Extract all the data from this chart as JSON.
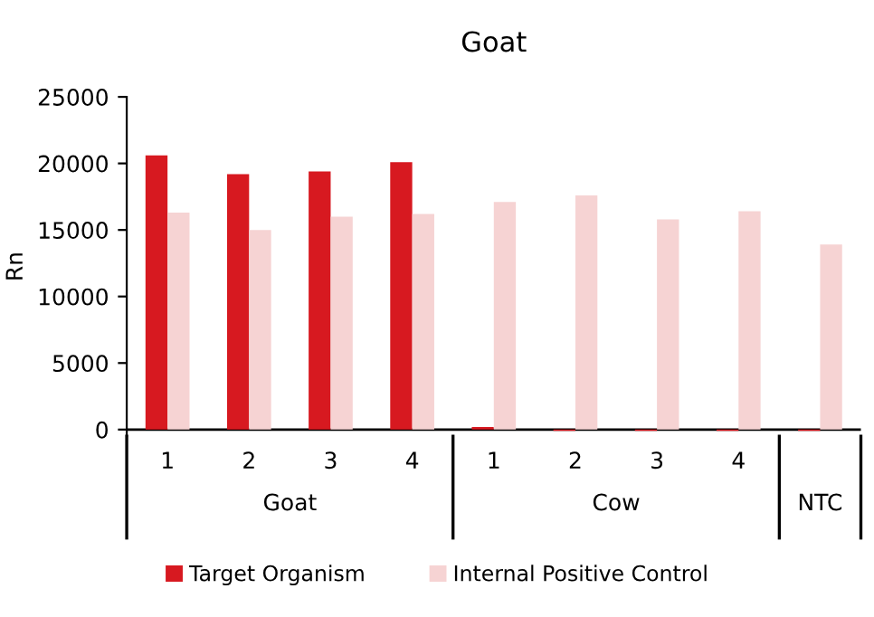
{
  "chart_data": {
    "type": "bar",
    "title": "Goat",
    "ylabel": "Rn",
    "categories": [
      "1",
      "2",
      "3",
      "4",
      "1",
      "2",
      "3",
      "4",
      null
    ],
    "series": [
      {
        "name": "Target Organism",
        "color": "#d71920",
        "values": [
          20600,
          19200,
          19400,
          20100,
          200,
          -100,
          -100,
          -100,
          -100
        ]
      },
      {
        "name": "Internal Positive Control",
        "color": "#f6d3d3",
        "values": [
          16300,
          15000,
          16000,
          16200,
          17100,
          17600,
          15800,
          16400,
          13900
        ]
      }
    ],
    "annotations": [
      "Goat",
      "Cow",
      "NTC"
    ],
    "ylim": [
      -500,
      25000
    ],
    "yticks": [
      0,
      5000,
      10000,
      15000,
      20000,
      25000
    ],
    "grid": false,
    "legend": "bottom"
  }
}
